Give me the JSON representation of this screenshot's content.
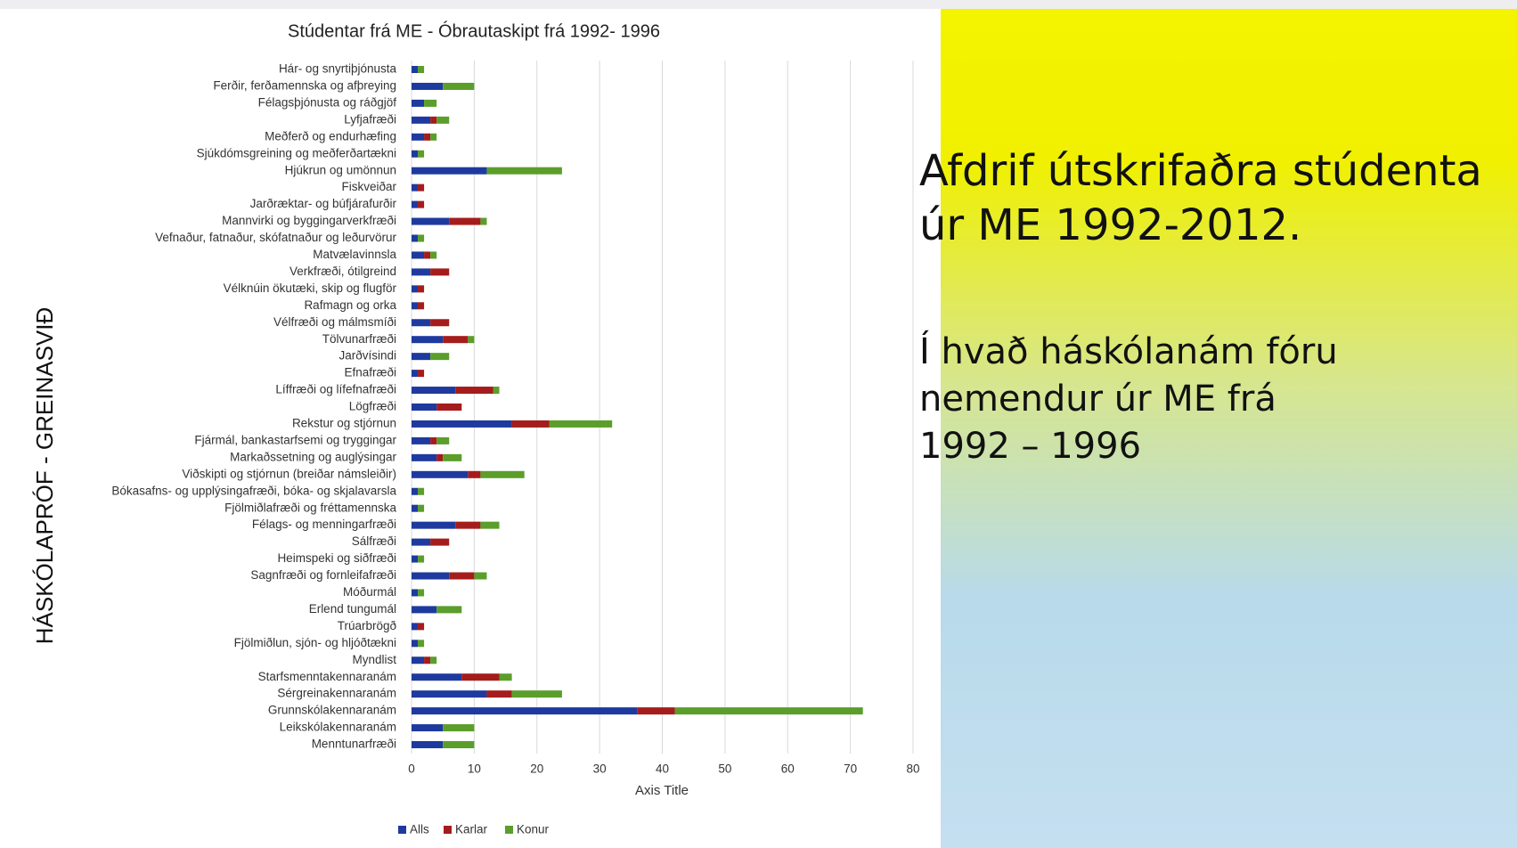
{
  "chart_data": {
    "type": "stacked-barh",
    "title": "Stúdentar frá ME - Óbrautaskipt frá 1992- 1996",
    "y_axis_label": "HÁSKÓLAPRÓF - GREINASVIÐ",
    "x_axis_label": "Axis Title",
    "categories": [
      "Hár- og snyrtiþjónusta",
      "Ferðir, ferðamennska og afþreying",
      "Félagsþjónusta og ráðgjöf",
      "Lyfjafræði",
      "Meðferð og endurhæfing",
      "Sjúkdómsgreining og meðferðartækni",
      "Hjúkrun og umönnun",
      "Fiskveiðar",
      "Jarðræktar- og búfjárafurðir",
      "Mannvirki og byggingarverkfræði",
      "Vefnaður, fatnaður, skófatnaður og leðurvörur",
      "Matvælavinnsla",
      "Verkfræði, ótilgreind",
      "Vélknúin ökutæki, skip og flugför",
      "Rafmagn og orka",
      "Vélfræði og málmsmíði",
      "Tölvunarfræði",
      "Jarðvísindi",
      "Efnafræði",
      "Líffræði og lífefnafræði",
      "Lögfræði",
      "Rekstur og stjórnun",
      "Fjármál, bankastarfsemi og tryggingar",
      "Markaðssetning og auglýsingar",
      "Viðskipti og stjórnun (breiðar námsleiðir)",
      "Bókasafns- og upplýsingafræði, bóka- og skjalavarsla",
      "Fjölmiðlafræði og fréttamennska",
      "Félags- og menningarfræði",
      "Sálfræði",
      "Heimspeki og siðfræði",
      "Sagnfræði og fornleifafræði",
      "Móðurmál",
      "Erlend tungumál",
      "Trúarbrögð",
      "Fjölmiðlun, sjón- og hljóðtækni",
      "Myndlist",
      "Starfsmenntakennaranám",
      "Sérgreinakennaranám",
      "Grunnskólakennaranám",
      "Leikskólakennaranám",
      "Menntunarfræði"
    ],
    "series": [
      {
        "name": "Alls",
        "color": "#1f3a9e",
        "values": [
          1,
          5,
          2,
          3,
          2,
          1,
          12,
          1,
          1,
          6,
          1,
          2,
          3,
          1,
          1,
          3,
          5,
          3,
          1,
          7,
          4,
          16,
          3,
          4,
          9,
          1,
          1,
          7,
          3,
          1,
          6,
          1,
          4,
          1,
          1,
          2,
          8,
          12,
          36,
          5,
          5
        ]
      },
      {
        "name": "Karlar",
        "color": "#a51c1c",
        "values": [
          0,
          0,
          0,
          1,
          1,
          0,
          0,
          1,
          1,
          5,
          0,
          1,
          3,
          1,
          1,
          3,
          4,
          0,
          1,
          6,
          4,
          6,
          1,
          1,
          2,
          0,
          0,
          4,
          3,
          0,
          4,
          0,
          0,
          1,
          0,
          1,
          6,
          4,
          6,
          0,
          0
        ]
      },
      {
        "name": "Konur",
        "color": "#5b9e2b",
        "values": [
          1,
          5,
          2,
          2,
          1,
          1,
          12,
          0,
          0,
          1,
          1,
          1,
          0,
          0,
          0,
          0,
          1,
          3,
          0,
          1,
          0,
          10,
          2,
          3,
          7,
          1,
          1,
          3,
          0,
          1,
          2,
          1,
          4,
          0,
          1,
          1,
          2,
          8,
          30,
          5,
          5
        ]
      }
    ],
    "xlim": [
      0,
      80
    ],
    "xticks": [
      0,
      10,
      20,
      30,
      40,
      50,
      60,
      70,
      80
    ],
    "grid": true,
    "legend": "bottom"
  },
  "side_text": {
    "heading": [
      "Afdrif útskrifaðra stúdenta",
      "úr ME 1992-2012."
    ],
    "subheading": [
      "Í hvað háskólanám fóru",
      "nemendur úr ME frá",
      "1992 – 1996"
    ]
  }
}
